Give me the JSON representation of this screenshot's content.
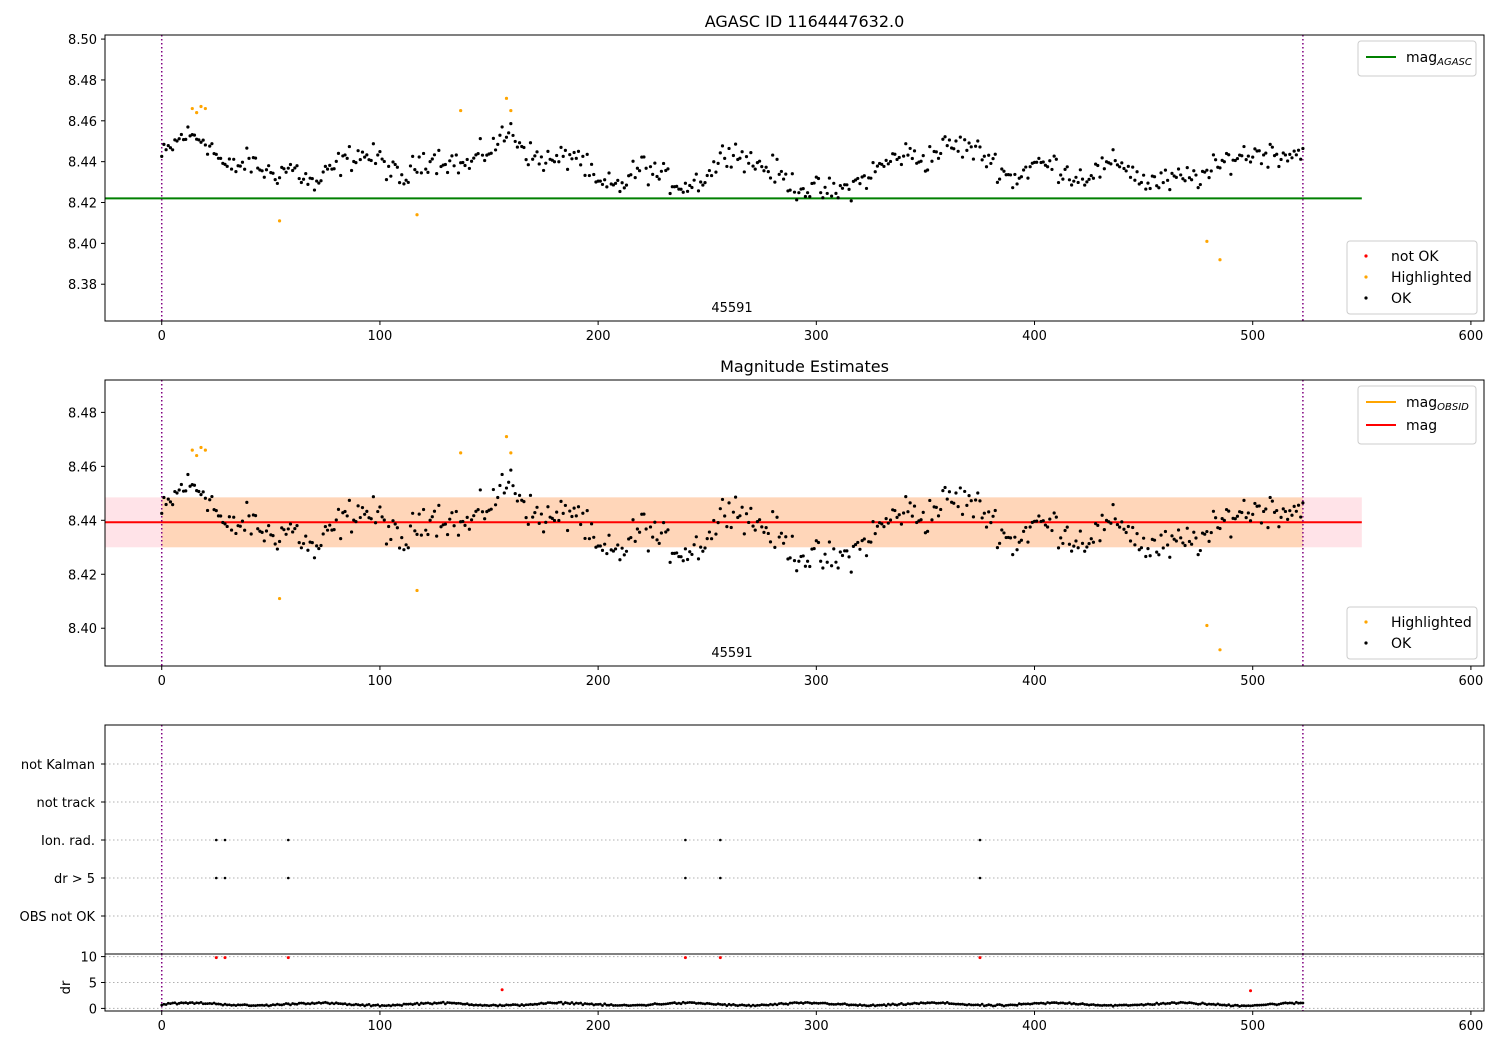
{
  "chart_data": [
    {
      "type": "scatter",
      "title": "AGASC ID 1164447632.0",
      "annotation": "45591",
      "xlim": [
        -26,
        606
      ],
      "ylim": [
        8.362,
        8.502
      ],
      "xticks": [
        0,
        100,
        200,
        300,
        400,
        500,
        600
      ],
      "yticks": [
        8.38,
        8.4,
        8.42,
        8.44,
        8.46,
        8.48,
        8.5
      ],
      "yticklabels": [
        "8.38",
        "8.40",
        "8.42",
        "8.44",
        "8.46",
        "8.48",
        "8.50"
      ],
      "vlines": [
        0,
        523
      ],
      "hlines": [
        {
          "name": "mag_AGASC",
          "y": 8.422,
          "x_range": [
            -26,
            550
          ],
          "color": "#008000"
        }
      ],
      "legend_lines": [
        {
          "label": "mag",
          "sub": "AGASC",
          "color": "#008000"
        }
      ],
      "legend_points": [
        {
          "label": "not OK",
          "color": "#ff0000"
        },
        {
          "label": "Highlighted",
          "color": "#ffa500"
        },
        {
          "label": "OK",
          "color": "#000000"
        }
      ],
      "highlighted_points": {
        "x": [
          14,
          16,
          18,
          20,
          54,
          117,
          137,
          158,
          160,
          479,
          485
        ],
        "y": [
          8.466,
          8.464,
          8.467,
          8.466,
          8.411,
          8.414,
          8.465,
          8.471,
          8.465,
          8.401,
          8.392
        ]
      },
      "ok_series": {
        "x_range": [
          0,
          523
        ],
        "y_at": [
          [
            0,
            8.442
          ],
          [
            10,
            8.453
          ],
          [
            20,
            8.451
          ],
          [
            30,
            8.436
          ],
          [
            40,
            8.44
          ],
          [
            50,
            8.434
          ],
          [
            60,
            8.437
          ],
          [
            70,
            8.428
          ],
          [
            80,
            8.438
          ],
          [
            90,
            8.444
          ],
          [
            100,
            8.441
          ],
          [
            110,
            8.43
          ],
          [
            120,
            8.442
          ],
          [
            130,
            8.441
          ],
          [
            140,
            8.438
          ],
          [
            150,
            8.446
          ],
          [
            160,
            8.455
          ],
          [
            170,
            8.442
          ],
          [
            180,
            8.44
          ],
          [
            190,
            8.444
          ],
          [
            200,
            8.428
          ],
          [
            210,
            8.428
          ],
          [
            220,
            8.438
          ],
          [
            230,
            8.432
          ],
          [
            240,
            8.428
          ],
          [
            250,
            8.433
          ],
          [
            260,
            8.447
          ],
          [
            270,
            8.44
          ],
          [
            280,
            8.436
          ],
          [
            290,
            8.428
          ],
          [
            300,
            8.426
          ],
          [
            310,
            8.425
          ],
          [
            320,
            8.43
          ],
          [
            330,
            8.438
          ],
          [
            340,
            8.444
          ],
          [
            350,
            8.441
          ],
          [
            360,
            8.448
          ],
          [
            370,
            8.447
          ],
          [
            380,
            8.441
          ],
          [
            390,
            8.431
          ],
          [
            400,
            8.439
          ],
          [
            410,
            8.438
          ],
          [
            420,
            8.432
          ],
          [
            430,
            8.436
          ],
          [
            440,
            8.44
          ],
          [
            450,
            8.43
          ],
          [
            460,
            8.43
          ],
          [
            470,
            8.432
          ],
          [
            480,
            8.434
          ],
          [
            490,
            8.442
          ],
          [
            500,
            8.444
          ],
          [
            510,
            8.444
          ],
          [
            523,
            8.444
          ]
        ]
      }
    },
    {
      "type": "scatter",
      "title": "Magnitude Estimates",
      "annotation": "45591",
      "xlim": [
        -26,
        606
      ],
      "ylim": [
        8.386,
        8.492
      ],
      "xticks": [
        0,
        100,
        200,
        300,
        400,
        500,
        600
      ],
      "yticks": [
        8.4,
        8.42,
        8.44,
        8.46,
        8.48
      ],
      "yticklabels": [
        "8.40",
        "8.42",
        "8.44",
        "8.46",
        "8.48"
      ],
      "vlines": [
        0,
        523
      ],
      "hlines": [
        {
          "name": "mag",
          "y": 8.4393,
          "x_range": [
            -26,
            550
          ],
          "color": "#ff0000"
        }
      ],
      "bands": [
        {
          "name": "mag-band",
          "y_range": [
            8.43,
            8.4485
          ],
          "x_range": [
            -26,
            550
          ],
          "color": "#ffc0cb",
          "opacity": 0.45
        },
        {
          "name": "mag_OBSID-band",
          "y_range": [
            8.43,
            8.4485
          ],
          "x_range": [
            0,
            523
          ],
          "color": "#ffa500",
          "opacity": 0.2
        }
      ],
      "legend_lines": [
        {
          "label": "mag",
          "sub": "OBSID",
          "color": "#ffa500"
        },
        {
          "label": "mag",
          "sub": "",
          "color": "#ff0000"
        }
      ],
      "legend_points": [
        {
          "label": "Highlighted",
          "color": "#ffa500"
        },
        {
          "label": "OK",
          "color": "#000000"
        }
      ],
      "highlighted_points": {
        "x": [
          14,
          16,
          18,
          20,
          54,
          117,
          137,
          158,
          160,
          479,
          485
        ],
        "y": [
          8.466,
          8.464,
          8.467,
          8.466,
          8.411,
          8.414,
          8.465,
          8.471,
          8.465,
          8.401,
          8.392
        ]
      },
      "ok_series": {
        "same_as_panel": 0
      }
    },
    {
      "type": "scatter",
      "title": "",
      "xlim": [
        -26,
        606
      ],
      "categories": [
        "not Kalman",
        "not track",
        "Ion. rad.",
        "dr > 5",
        "OBS not OK"
      ],
      "vlines": [
        0,
        523
      ],
      "flag_points": {
        "Ion. rad.": [
          25,
          29,
          58,
          240,
          256,
          375
        ],
        "dr > 5": [
          25,
          29,
          58,
          240,
          256,
          375
        ]
      }
    },
    {
      "type": "scatter",
      "title": "",
      "ylabel": "dr",
      "xlim": [
        -26,
        606
      ],
      "ylim": [
        -0.5,
        10.5
      ],
      "xticks": [
        0,
        100,
        200,
        300,
        400,
        500,
        600
      ],
      "yticks": [
        0,
        5,
        10
      ],
      "yticklabels": [
        "0",
        "5",
        "10"
      ],
      "vlines": [
        0,
        523
      ],
      "notok_points": {
        "x": [
          25,
          29,
          58,
          156,
          240,
          256,
          375,
          499
        ],
        "y": [
          9.8,
          9.8,
          9.8,
          3.6,
          9.8,
          9.8,
          9.8,
          3.4
        ]
      },
      "ok_series": {
        "x_range": [
          0,
          523
        ],
        "typical": 0.8,
        "amplitude": 0.4
      }
    }
  ]
}
